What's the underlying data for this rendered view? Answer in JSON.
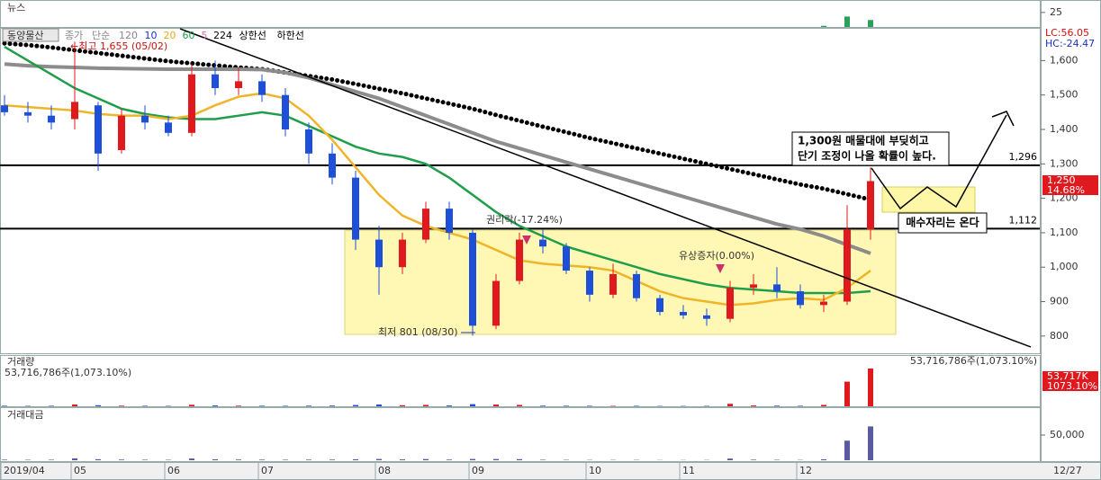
{
  "chart_data": [
    {
      "type": "bar",
      "title": "뉴스",
      "color": "#2aa05a",
      "ylim": [
        0,
        45
      ],
      "yticks": [
        25
      ],
      "values": [
        0,
        0,
        0,
        0,
        0,
        0,
        0,
        0,
        0,
        0,
        0,
        0,
        0,
        0,
        0,
        0,
        0,
        0,
        0,
        0,
        0,
        0,
        0,
        0,
        0,
        0,
        0,
        0,
        0,
        0,
        0,
        0,
        0,
        0,
        0,
        2,
        18,
        12
      ]
    },
    {
      "type": "candlestick",
      "title": "동양물산",
      "indicators": [
        "종가",
        "단순",
        "120",
        "10",
        "20",
        "60",
        "5",
        "224",
        "상한선",
        "하한선"
      ],
      "indicator_colors": [
        "#888888",
        "#888888",
        "#888888",
        "#1a2fc0",
        "#e8a818",
        "#1e9e4a",
        "#e070b0",
        "#000000",
        "#000000",
        "#000000"
      ],
      "up_color": "#e0191e",
      "down_color": "#1e4fd8",
      "open": [
        1470,
        1450,
        1440,
        1430,
        1470,
        1340,
        1440,
        1420,
        1390,
        1560,
        1520,
        1540,
        1500,
        1400,
        1330,
        1260,
        1080,
        1000,
        1080,
        1170,
        1100,
        830,
        960,
        1080,
        1060,
        990,
        920,
        980,
        910,
        870,
        860,
        850,
        940,
        950,
        930,
        890,
        900,
        1110
      ],
      "high": [
        1500,
        1480,
        1470,
        1655,
        1480,
        1460,
        1470,
        1440,
        1590,
        1600,
        1580,
        1560,
        1520,
        1420,
        1360,
        1280,
        1120,
        1100,
        1190,
        1190,
        1110,
        980,
        1100,
        1110,
        1070,
        1000,
        1010,
        990,
        920,
        890,
        880,
        960,
        980,
        1000,
        950,
        920,
        1180,
        1290
      ],
      "low": [
        1440,
        1420,
        1400,
        1400,
        1280,
        1330,
        1400,
        1380,
        1380,
        1500,
        1500,
        1480,
        1380,
        1300,
        1240,
        1050,
        920,
        980,
        1070,
        1080,
        801,
        820,
        950,
        1040,
        980,
        900,
        910,
        900,
        860,
        850,
        830,
        840,
        920,
        910,
        880,
        870,
        890,
        1080
      ],
      "close": [
        1450,
        1440,
        1420,
        1480,
        1330,
        1440,
        1420,
        1390,
        1560,
        1520,
        1540,
        1500,
        1400,
        1330,
        1260,
        1080,
        1000,
        1080,
        1170,
        1100,
        830,
        960,
        1080,
        1060,
        990,
        920,
        980,
        910,
        870,
        860,
        850,
        940,
        950,
        930,
        890,
        900,
        1110,
        1250
      ],
      "series": [
        {
          "name": "224",
          "color": "#000000",
          "style": "dots",
          "values": [
            1650,
            1645,
            1638,
            1630,
            1622,
            1614,
            1606,
            1598,
            1592,
            1586,
            1580,
            1575,
            1565,
            1555,
            1545,
            1532,
            1518,
            1505,
            1490,
            1475,
            1460,
            1442,
            1425,
            1408,
            1392,
            1375,
            1360,
            1345,
            1330,
            1315,
            1300,
            1285,
            1270,
            1255,
            1240,
            1228,
            1212,
            1196
          ]
        },
        {
          "name": "120",
          "color": "#8c8c8c",
          "style": "thick",
          "values": [
            1590,
            1585,
            1582,
            1580,
            1578,
            1577,
            1576,
            1575,
            1575,
            1575,
            1575,
            1574,
            1565,
            1550,
            1530,
            1510,
            1490,
            1465,
            1440,
            1415,
            1390,
            1365,
            1345,
            1325,
            1305,
            1285,
            1265,
            1245,
            1225,
            1205,
            1185,
            1165,
            1145,
            1125,
            1110,
            1090,
            1065,
            1040
          ]
        },
        {
          "name": "60",
          "color": "#1e9e4a",
          "style": "solid",
          "values": [
            1640,
            1600,
            1560,
            1520,
            1490,
            1460,
            1445,
            1435,
            1430,
            1430,
            1440,
            1450,
            1440,
            1410,
            1380,
            1350,
            1330,
            1320,
            1300,
            1260,
            1210,
            1160,
            1120,
            1090,
            1060,
            1040,
            1020,
            1000,
            980,
            965,
            950,
            940,
            935,
            930,
            925,
            925,
            925,
            930
          ]
        },
        {
          "name": "20",
          "color": "#f0b428",
          "style": "solid",
          "values": [
            1470,
            1465,
            1460,
            1455,
            1445,
            1440,
            1440,
            1430,
            1440,
            1470,
            1495,
            1505,
            1490,
            1440,
            1370,
            1290,
            1210,
            1150,
            1120,
            1100,
            1080,
            1050,
            1020,
            1010,
            1005,
            1000,
            990,
            960,
            930,
            910,
            900,
            890,
            895,
            905,
            910,
            905,
            940,
            990
          ]
        }
      ],
      "ylim": [
        750,
        1695
      ],
      "yticks": [
        800,
        900,
        {
          "value": 1000,
          "label": "1,000"
        },
        {
          "value": 1100,
          "label": "1,100"
        },
        {
          "value": 1200,
          "label": "1,200"
        },
        {
          "value": 1300,
          "label": "1,300"
        },
        {
          "value": 1400,
          "label": "1,400"
        },
        {
          "value": 1500,
          "label": "1,500"
        },
        {
          "value": 1600,
          "label": "1,600"
        }
      ],
      "hlines": [
        {
          "value": 1296,
          "label": "1,296"
        },
        {
          "value": 1112,
          "label": "1,112"
        }
      ],
      "xticks": [
        {
          "value": 0,
          "label": "2019/04"
        },
        {
          "value": 3,
          "label": "05"
        },
        {
          "value": 7,
          "label": "06"
        },
        {
          "value": 11,
          "label": "07"
        },
        {
          "value": 16,
          "label": "08"
        },
        {
          "value": 20,
          "label": "09"
        },
        {
          "value": 25,
          "label": "10"
        },
        {
          "value": 29,
          "label": "11"
        },
        {
          "value": 34,
          "label": "12"
        }
      ],
      "last_date": "12/27",
      "last_label": "1,250",
      "change": "14.68%",
      "lc": "LC:56.05",
      "hc": "HC:-24.47",
      "annotations": {
        "high": "←최고 1,655 (05/02)",
        "low": "최저 801 (08/30)",
        "rights": "권리락(-17.24%)",
        "offering": "유상증자(0.00%)",
        "note1": "1,300원 매물대에 부딪히고",
        "note2": "단기 조정이 나올 확률이 높다.",
        "buy": "매수자리는 온다"
      }
    },
    {
      "type": "bar",
      "title": "거래량",
      "summary": "53,716,786주(1,073.10%)",
      "ylim": [
        0,
        60000
      ],
      "last_value_label": "53,717K",
      "last_ratio": "1073.10%",
      "values": [
        800,
        600,
        700,
        2500,
        1500,
        900,
        700,
        600,
        2200,
        1200,
        900,
        800,
        700,
        900,
        1000,
        1800,
        2500,
        1500,
        2000,
        1200,
        3000,
        2500,
        2000,
        900,
        800,
        700,
        600,
        700,
        500,
        500,
        600,
        3500,
        1200,
        900,
        700,
        2000,
        35000,
        53717
      ]
    },
    {
      "type": "bar",
      "title": "거래대금",
      "color": "#5a5aa0",
      "ylim": [
        0,
        100000
      ],
      "yticks": [
        {
          "value": 50000,
          "label": "50,000"
        }
      ],
      "values": [
        1160,
        870,
        1000,
        3700,
        2000,
        1300,
        1000,
        840,
        3400,
        1820,
        1380,
        1200,
        1000,
        1200,
        1260,
        1940,
        2500,
        1620,
        2340,
        1320,
        2490,
        2400,
        2160,
        950,
        790,
        640,
        590,
        640,
        435,
        430,
        510,
        3290,
        1140,
        840,
        620,
        1800,
        38850,
        67150
      ]
    }
  ]
}
